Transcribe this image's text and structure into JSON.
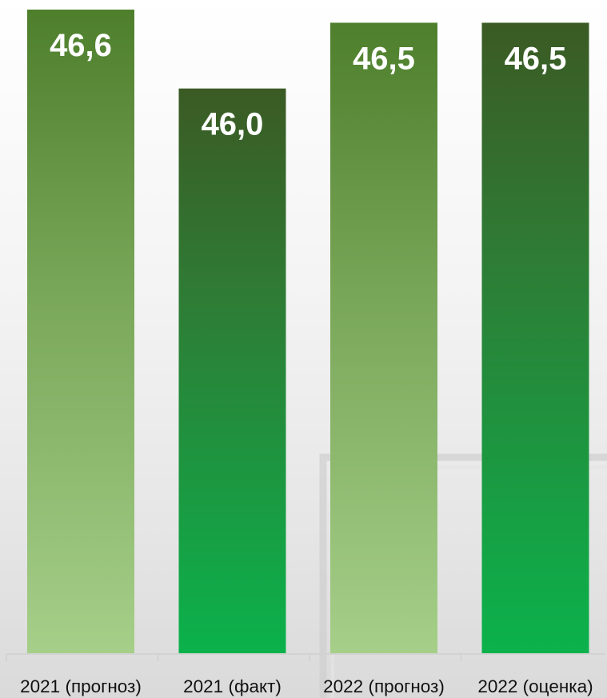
{
  "chart_data": {
    "type": "bar",
    "title": "",
    "xlabel": "",
    "ylabel": "",
    "categories": [
      "2021 (прогноз)",
      "2021 (факт)",
      "2022 (прогноз)",
      "2022 (оценка)"
    ],
    "values": [
      46.6,
      46.0,
      46.5,
      46.5
    ],
    "value_labels": [
      "46,6",
      "46,0",
      "46,5",
      "46,5"
    ],
    "ylim": [
      41.7,
      46.6
    ],
    "grid": false,
    "legend": "none",
    "colors": {
      "light_gradient_top": "#4e7f2c",
      "light_gradient_bottom": "#a6cf89",
      "dark_gradient_top": "#3b5a24",
      "dark_gradient_bottom": "#0bb24c",
      "bar_labels": "#ffffff",
      "tick_labels": "#111111",
      "axis": "#d2d2d2"
    },
    "bar_styles": [
      "light",
      "dark",
      "light",
      "dark"
    ]
  }
}
